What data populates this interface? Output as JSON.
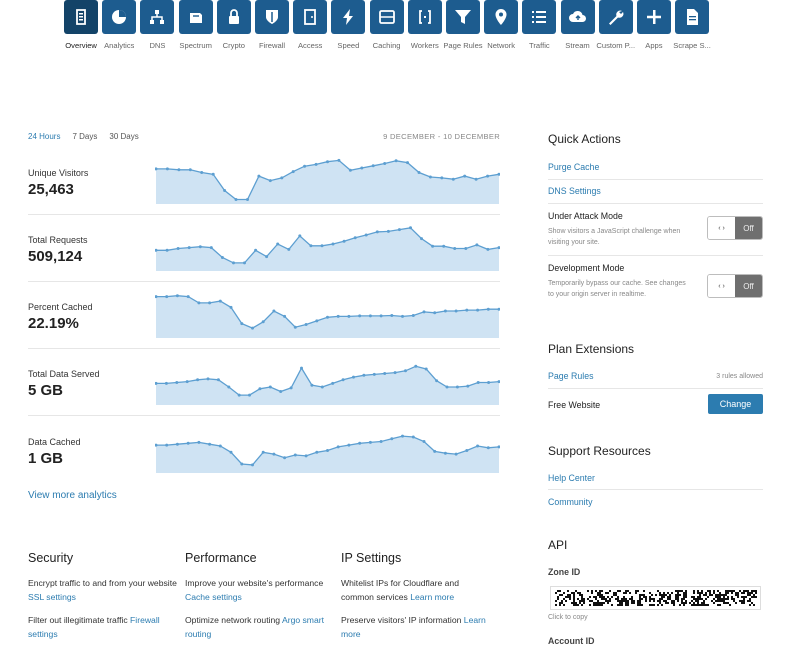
{
  "nav": [
    {
      "label": "Overview",
      "icon": "overview-icon",
      "active": true
    },
    {
      "label": "Analytics",
      "icon": "pie-chart-icon"
    },
    {
      "label": "DNS",
      "icon": "network-tree-icon"
    },
    {
      "label": "Spectrum",
      "icon": "spectrum-icon"
    },
    {
      "label": "Crypto",
      "icon": "lock-icon"
    },
    {
      "label": "Firewall",
      "icon": "shield-icon"
    },
    {
      "label": "Access",
      "icon": "door-icon"
    },
    {
      "label": "Speed",
      "icon": "lightning-icon"
    },
    {
      "label": "Caching",
      "icon": "server-icon"
    },
    {
      "label": "Workers",
      "icon": "brackets-icon"
    },
    {
      "label": "Page Rules",
      "icon": "filter-icon"
    },
    {
      "label": "Network",
      "icon": "location-pin-icon"
    },
    {
      "label": "Traffic",
      "icon": "list-icon"
    },
    {
      "label": "Stream",
      "icon": "cloud-upload-icon"
    },
    {
      "label": "Custom P...",
      "icon": "wrench-icon"
    },
    {
      "label": "Apps",
      "icon": "plus-icon"
    },
    {
      "label": "Scrape S...",
      "icon": "document-icon"
    }
  ],
  "timebar": {
    "options": [
      "24 Hours",
      "7 Days",
      "30 Days"
    ],
    "active_index": 0,
    "date_range": "9 DECEMBER - 10 DECEMBER"
  },
  "metrics": [
    {
      "label": "Unique Visitors",
      "value": "25,463"
    },
    {
      "label": "Total Requests",
      "value": "509,124"
    },
    {
      "label": "Percent Cached",
      "value": "22.19%"
    },
    {
      "label": "Total Data Served",
      "value": "5 GB"
    },
    {
      "label": "Data Cached",
      "value": "1 GB"
    }
  ],
  "chart_data": [
    {
      "type": "area",
      "name": "Unique Visitors",
      "values": [
        78,
        78,
        76,
        76,
        70,
        66,
        30,
        10,
        10,
        62,
        52,
        58,
        72,
        84,
        88,
        94,
        97,
        75,
        80,
        85,
        90,
        96,
        92,
        70,
        60,
        58,
        55,
        62,
        55,
        62,
        66
      ]
    },
    {
      "type": "area",
      "name": "Total Requests",
      "values": [
        46,
        46,
        50,
        52,
        54,
        52,
        30,
        18,
        18,
        46,
        32,
        60,
        48,
        78,
        56,
        56,
        60,
        66,
        74,
        80,
        87,
        88,
        92,
        96,
        72,
        55,
        55,
        50,
        50,
        58,
        48,
        52
      ]
    },
    {
      "type": "area",
      "name": "Percent Cached",
      "values": [
        92,
        92,
        94,
        92,
        78,
        78,
        82,
        68,
        32,
        22,
        36,
        60,
        48,
        24,
        30,
        38,
        46,
        48,
        48,
        49,
        49,
        49,
        50,
        48,
        50,
        58,
        56,
        60,
        60,
        62,
        62,
        64,
        64
      ]
    },
    {
      "type": "area",
      "name": "Total Data Served",
      "values": [
        48,
        48,
        50,
        52,
        56,
        58,
        56,
        40,
        22,
        22,
        36,
        40,
        30,
        38,
        82,
        44,
        40,
        48,
        56,
        62,
        66,
        68,
        70,
        72,
        76,
        86,
        80,
        54,
        40,
        40,
        42,
        50,
        50,
        52
      ]
    },
    {
      "type": "area",
      "name": "Data Cached",
      "values": [
        62,
        62,
        64,
        66,
        68,
        64,
        60,
        46,
        20,
        18,
        46,
        42,
        34,
        40,
        38,
        46,
        50,
        58,
        62,
        66,
        68,
        70,
        76,
        82,
        80,
        70,
        48,
        44,
        42,
        50,
        60,
        56,
        58
      ]
    }
  ],
  "view_more": "View more analytics",
  "bottom": {
    "security": {
      "title": "Security",
      "p1_text": "Encrypt traffic to and from your website ",
      "p1_link": "SSL settings",
      "p2_text": "Filter out illegitimate traffic ",
      "p2_link": "Firewall settings"
    },
    "performance": {
      "title": "Performance",
      "p1_text": "Improve your website's performance ",
      "p1_link": "Cache settings",
      "p2_text": "Optimize network routing ",
      "p2_link": "Argo smart routing"
    },
    "ip": {
      "title": "IP Settings",
      "p1_text": "Whitelist IPs for Cloudflare and common services ",
      "p1_link": "Learn more",
      "p2_text": "Preserve visitors' IP information ",
      "p2_link": "Learn more"
    }
  },
  "quick_actions": {
    "title": "Quick Actions",
    "purge_cache": "Purge Cache",
    "dns_settings": "DNS Settings",
    "under_attack": {
      "title": "Under Attack Mode",
      "desc": "Show visitors a JavaScript challenge when visiting your site.",
      "toggle_left": "‹ ›",
      "toggle_state": "Off"
    },
    "dev_mode": {
      "title": "Development Mode",
      "desc": "Temporarily bypass our cache. See changes to your origin server in realtime.",
      "toggle_left": "‹ ›",
      "toggle_state": "Off"
    }
  },
  "plan": {
    "title": "Plan Extensions",
    "page_rules": "Page Rules",
    "rules_allowed": "3 rules allowed",
    "free_website": "Free Website",
    "change": "Change"
  },
  "support": {
    "title": "Support Resources",
    "help_center": "Help Center",
    "community": "Community"
  },
  "api": {
    "title": "API",
    "zone_id_label": "Zone ID",
    "click_to_copy": "Click to copy",
    "account_id_label": "Account ID"
  },
  "colors": {
    "nav_tile": "#1d5c8f",
    "link": "#2c7cb0",
    "chart_fill": "#cfe3f3",
    "chart_line": "#5d9fd1"
  }
}
